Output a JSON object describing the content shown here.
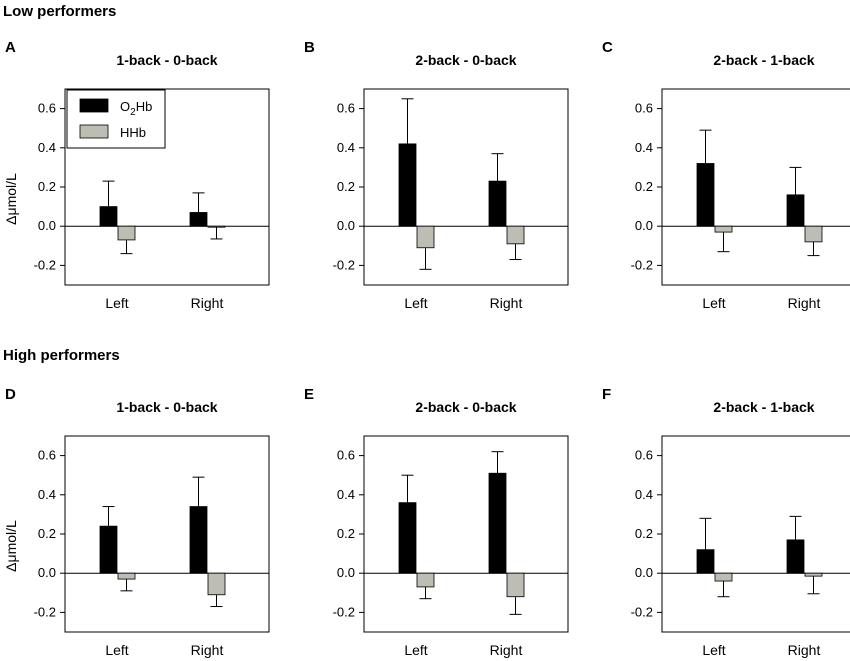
{
  "figure": {
    "group_titles": [
      "Low performers",
      "High performers"
    ],
    "colors": {
      "o2hb": "#000000",
      "hhb": "#bdbdb3",
      "axis": "#000000"
    },
    "legend": {
      "o2hb_prefix": "O",
      "o2hb_sub": "2",
      "o2hb_suffix": "Hb",
      "hhb": "HHb"
    },
    "ylabel": "Δμmol/L"
  },
  "chart_data": [
    {
      "type": "bar",
      "letter": "A",
      "group": "Low performers",
      "title": "1-back - 0-back",
      "categories": [
        "Left",
        "Right"
      ],
      "ylim": [
        -0.3,
        0.7
      ],
      "yticks": [
        "0.6",
        "0.4",
        "0.2",
        "0.0",
        "-0.2"
      ],
      "ytick_values": [
        0.6,
        0.4,
        0.2,
        0.0,
        -0.2
      ],
      "series": [
        {
          "name": "O2Hb",
          "values": [
            0.1,
            0.07
          ],
          "errors": [
            0.13,
            0.1
          ]
        },
        {
          "name": "HHb",
          "values": [
            -0.07,
            -0.005
          ],
          "errors": [
            0.07,
            0.06
          ]
        }
      ]
    },
    {
      "type": "bar",
      "letter": "B",
      "group": "Low performers",
      "title": "2-back - 0-back",
      "categories": [
        "Left",
        "Right"
      ],
      "ylim": [
        -0.3,
        0.7
      ],
      "yticks": [
        "0.6",
        "0.4",
        "0.2",
        "0.0",
        "-0.2"
      ],
      "ytick_values": [
        0.6,
        0.4,
        0.2,
        0.0,
        -0.2
      ],
      "series": [
        {
          "name": "O2Hb",
          "values": [
            0.42,
            0.23
          ],
          "errors": [
            0.23,
            0.14
          ]
        },
        {
          "name": "HHb",
          "values": [
            -0.11,
            -0.09
          ],
          "errors": [
            0.11,
            0.08
          ]
        }
      ]
    },
    {
      "type": "bar",
      "letter": "C",
      "group": "Low performers",
      "title": "2-back - 1-back",
      "categories": [
        "Left",
        "Right"
      ],
      "ylim": [
        -0.3,
        0.7
      ],
      "yticks": [
        "0.6",
        "0.4",
        "0.2",
        "0.0",
        "-0.2"
      ],
      "ytick_values": [
        0.6,
        0.4,
        0.2,
        0.0,
        -0.2
      ],
      "series": [
        {
          "name": "O2Hb",
          "values": [
            0.32,
            0.16
          ],
          "errors": [
            0.17,
            0.14
          ]
        },
        {
          "name": "HHb",
          "values": [
            -0.03,
            -0.08
          ],
          "errors": [
            0.1,
            0.07
          ]
        }
      ]
    },
    {
      "type": "bar",
      "letter": "D",
      "group": "High performers",
      "title": "1-back - 0-back",
      "categories": [
        "Left",
        "Right"
      ],
      "ylim": [
        -0.3,
        0.7
      ],
      "yticks": [
        "0.6",
        "0.4",
        "0.2",
        "0.0",
        "-0.2"
      ],
      "ytick_values": [
        0.6,
        0.4,
        0.2,
        0.0,
        -0.2
      ],
      "series": [
        {
          "name": "O2Hb",
          "values": [
            0.24,
            0.34
          ],
          "errors": [
            0.1,
            0.15
          ]
        },
        {
          "name": "HHb",
          "values": [
            -0.03,
            -0.11
          ],
          "errors": [
            0.06,
            0.06
          ]
        }
      ]
    },
    {
      "type": "bar",
      "letter": "E",
      "group": "High performers",
      "title": "2-back - 0-back",
      "categories": [
        "Left",
        "Right"
      ],
      "ylim": [
        -0.3,
        0.7
      ],
      "yticks": [
        "0.6",
        "0.4",
        "0.2",
        "0.0",
        "-0.2"
      ],
      "ytick_values": [
        0.6,
        0.4,
        0.2,
        0.0,
        -0.2
      ],
      "series": [
        {
          "name": "O2Hb",
          "values": [
            0.36,
            0.51
          ],
          "errors": [
            0.14,
            0.11
          ]
        },
        {
          "name": "HHb",
          "values": [
            -0.07,
            -0.12
          ],
          "errors": [
            0.06,
            0.09
          ]
        }
      ]
    },
    {
      "type": "bar",
      "letter": "F",
      "group": "High performers",
      "title": "2-back - 1-back",
      "categories": [
        "Left",
        "Right"
      ],
      "ylim": [
        -0.3,
        0.7
      ],
      "yticks": [
        "0.6",
        "0.4",
        "0.2",
        "0.0",
        "-0.2"
      ],
      "ytick_values": [
        0.6,
        0.4,
        0.2,
        0.0,
        -0.2
      ],
      "series": [
        {
          "name": "O2Hb",
          "values": [
            0.12,
            0.17
          ],
          "errors": [
            0.16,
            0.12
          ]
        },
        {
          "name": "HHb",
          "values": [
            -0.04,
            -0.015
          ],
          "errors": [
            0.08,
            0.09
          ]
        }
      ]
    }
  ]
}
